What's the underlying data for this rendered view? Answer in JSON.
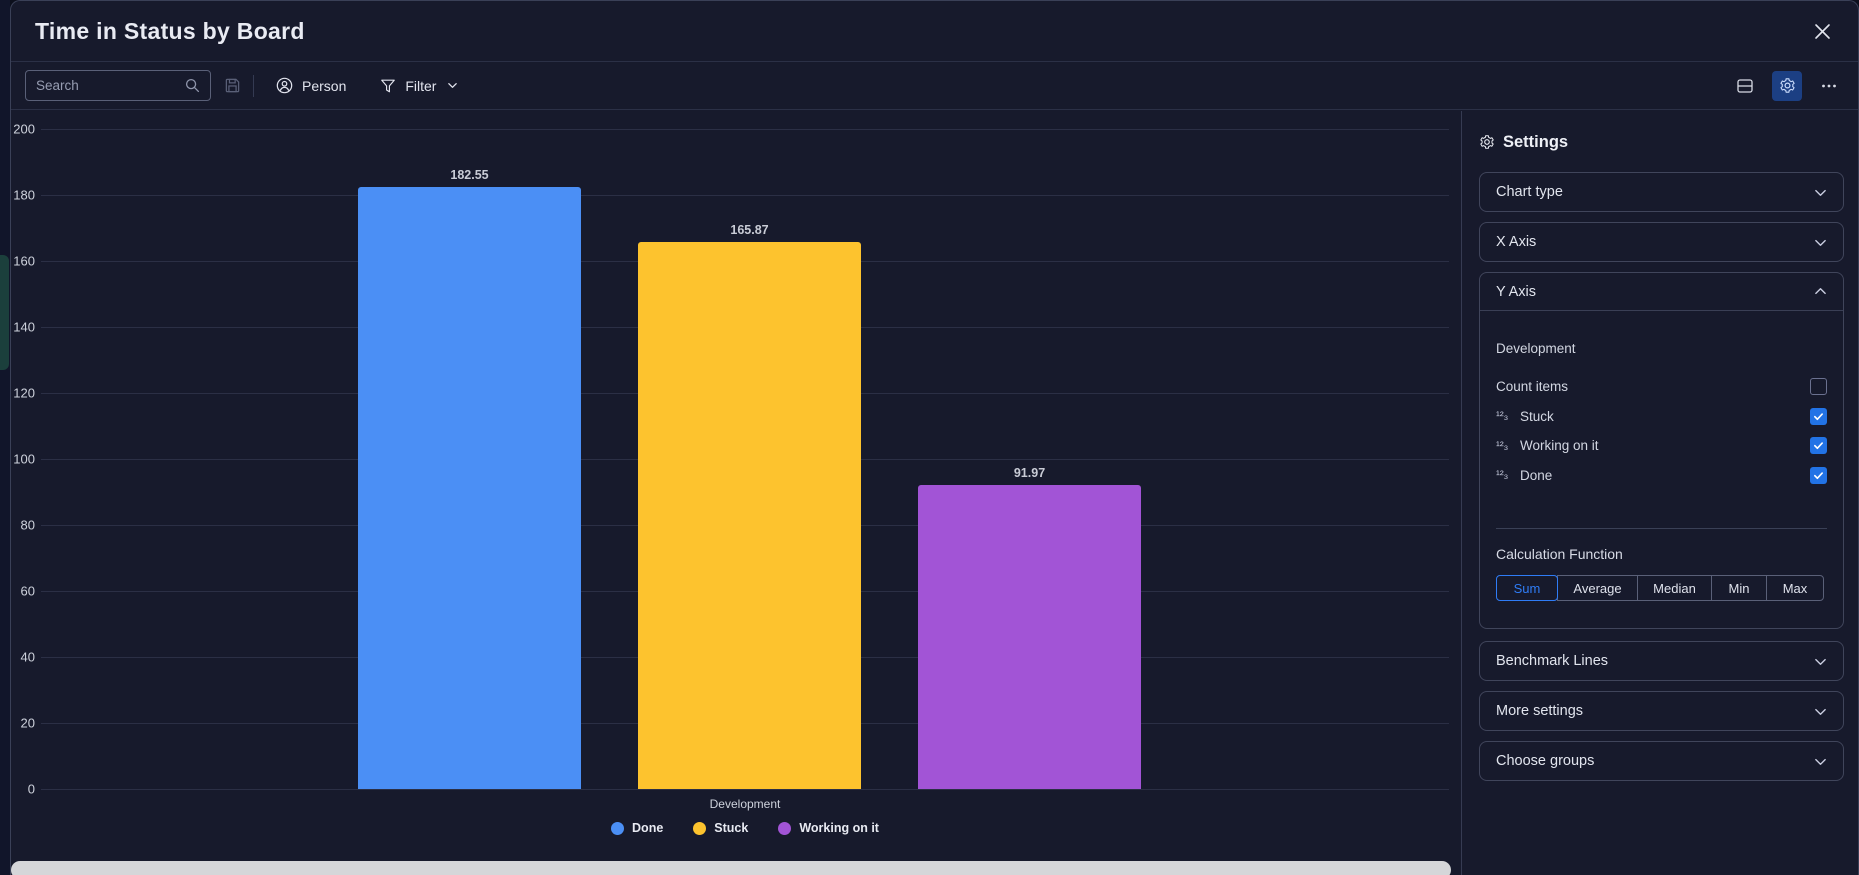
{
  "window": {
    "title": "Time in Status by Board"
  },
  "toolbar": {
    "search_placeholder": "Search",
    "person_label": "Person",
    "filter_label": "Filter",
    "active_icon_bg": "#1c3f83"
  },
  "chart_data": {
    "type": "bar",
    "title": "Time in Status by Board",
    "categories": [
      "Development"
    ],
    "series": [
      {
        "name": "Done",
        "values": [
          182.55
        ],
        "color": "#4b8ff5"
      },
      {
        "name": "Stuck",
        "values": [
          165.87
        ],
        "color": "#fdc32e"
      },
      {
        "name": "Working on it",
        "values": [
          91.97
        ],
        "color": "#a254d6"
      }
    ],
    "xlabel": "Development",
    "ylabel": "",
    "ylim": [
      0,
      200
    ],
    "ytick_step": 20,
    "grid": true,
    "legend_position": "bottom",
    "value_labels": true
  },
  "settings": {
    "title": "Settings",
    "accent_color": "#2f7cf6",
    "sections": [
      {
        "label": "Chart type",
        "expanded": false
      },
      {
        "label": "X Axis",
        "expanded": false
      },
      {
        "label": "Y Axis",
        "expanded": true
      },
      {
        "label": "Benchmark Lines",
        "expanded": false
      },
      {
        "label": "More settings",
        "expanded": false
      },
      {
        "label": "Choose groups",
        "expanded": false
      }
    ],
    "y_axis": {
      "board_label": "Development",
      "numbers_icon_glyph": "¹²₃",
      "items": [
        {
          "label": "Count items",
          "icon": null,
          "checked": false
        },
        {
          "label": "Stuck",
          "icon": "numbers",
          "checked": true
        },
        {
          "label": "Working on it",
          "icon": "numbers",
          "checked": true
        },
        {
          "label": "Done",
          "icon": "numbers",
          "checked": true
        }
      ],
      "calculation_label": "Calculation Function",
      "calculation_options": [
        "Sum",
        "Average",
        "Median",
        "Min",
        "Max"
      ],
      "calculation_selected": "Sum",
      "checkbox_checked_color": "#2273e6"
    }
  }
}
